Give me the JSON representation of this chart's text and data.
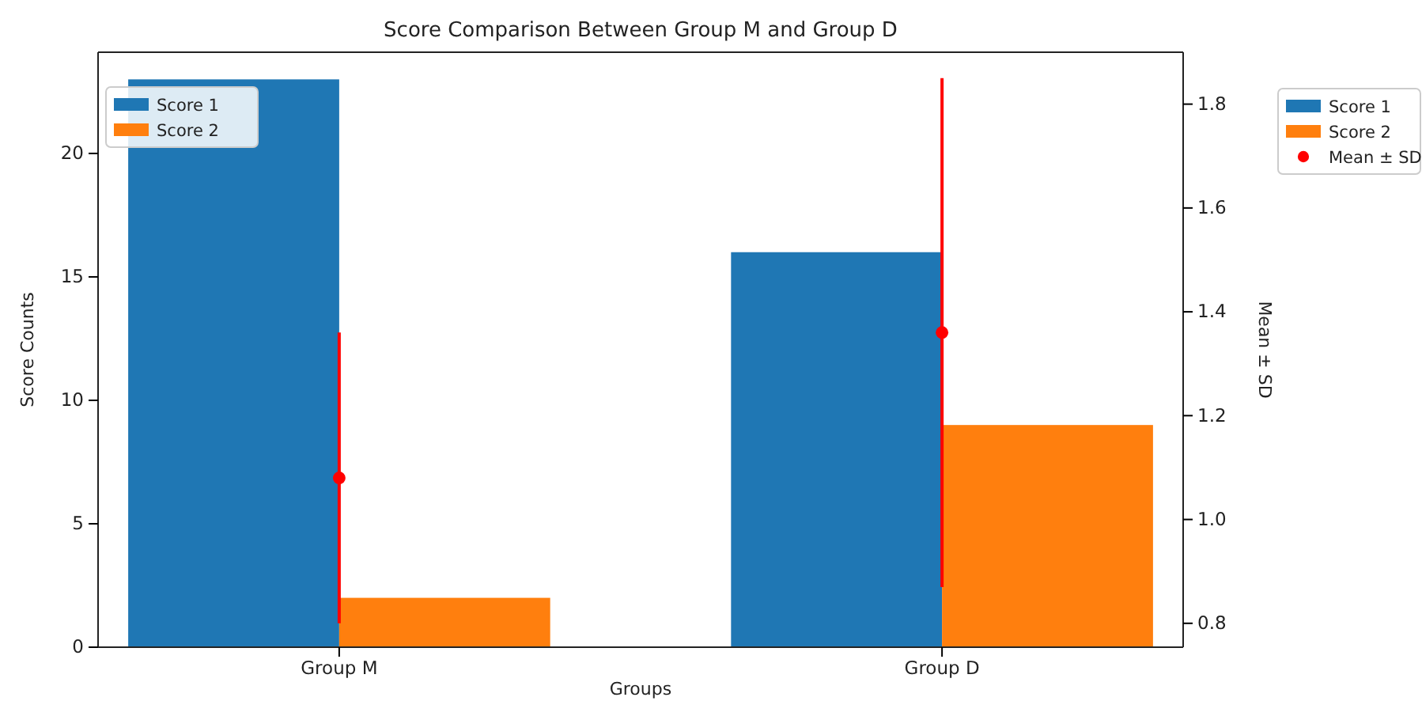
{
  "chart_data": {
    "type": "bar",
    "title": "Score Comparison Between Group M and Group D",
    "xlabel": "Groups",
    "ylabel": "Score Counts",
    "y2label": "Mean ± SD",
    "categories": [
      "Group M",
      "Group D"
    ],
    "series": [
      {
        "name": "Score 1",
        "color": "#1f77b4",
        "values": [
          23,
          16
        ]
      },
      {
        "name": "Score 2",
        "color": "#ff7f0e",
        "values": [
          2,
          9
        ]
      },
      {
        "name": "Mean ± SD",
        "type": "scatter",
        "axis": "y2",
        "color": "#ff0000",
        "x": [
          "Group M",
          "Group D"
        ],
        "values": [
          1.08,
          1.36
        ],
        "errors": [
          0.28,
          0.49
        ]
      }
    ],
    "ylim": [
      0,
      24.1
    ],
    "yticks": [
      0,
      5,
      10,
      15,
      20
    ],
    "y2lim": [
      0.754,
      1.9
    ],
    "y2ticks": [
      0.8,
      {
        "value": 1,
        "label": "1.0"
      },
      1.2,
      1.4,
      1.6,
      1.8
    ],
    "marker": "circle",
    "grid": false,
    "legend": [
      "top left",
      "right"
    ]
  }
}
